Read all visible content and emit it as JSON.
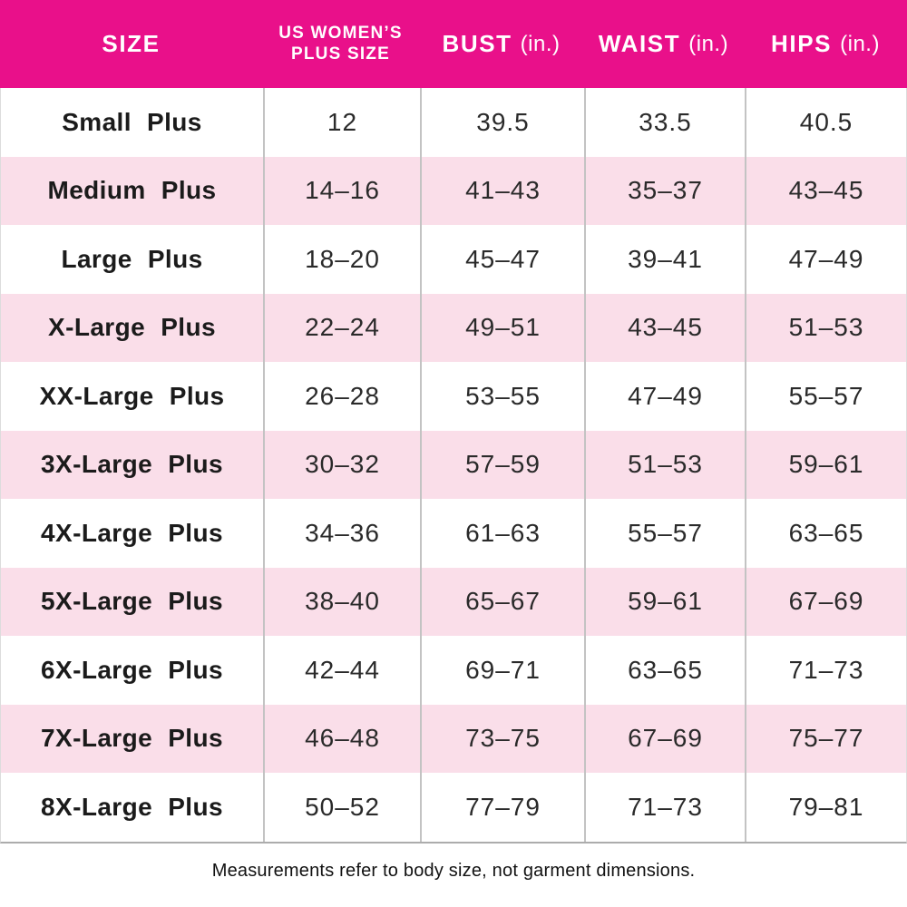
{
  "header": {
    "col_size": "SIZE",
    "col_us_line1": "US WOMEN’S",
    "col_us_line2": "PLUS SIZE",
    "col_bust": "BUST",
    "col_waist": "WAIST",
    "col_hips": "HIPS",
    "unit": "(in.)"
  },
  "rows": [
    {
      "size": "Small Plus",
      "us": "12",
      "bust": "39.5",
      "waist": "33.5",
      "hips": "40.5"
    },
    {
      "size": "Medium Plus",
      "us": "14–16",
      "bust": "41–43",
      "waist": "35–37",
      "hips": "43–45"
    },
    {
      "size": "Large Plus",
      "us": "18–20",
      "bust": "45–47",
      "waist": "39–41",
      "hips": "47–49"
    },
    {
      "size": "X-Large Plus",
      "us": "22–24",
      "bust": "49–51",
      "waist": "43–45",
      "hips": "51–53"
    },
    {
      "size": "XX-Large Plus",
      "us": "26–28",
      "bust": "53–55",
      "waist": "47–49",
      "hips": "55–57"
    },
    {
      "size": "3X-Large Plus",
      "us": "30–32",
      "bust": "57–59",
      "waist": "51–53",
      "hips": "59–61"
    },
    {
      "size": "4X-Large Plus",
      "us": "34–36",
      "bust": "61–63",
      "waist": "55–57",
      "hips": "63–65"
    },
    {
      "size": "5X-Large Plus",
      "us": "38–40",
      "bust": "65–67",
      "waist": "59–61",
      "hips": "67–69"
    },
    {
      "size": "6X-Large Plus",
      "us": "42–44",
      "bust": "69–71",
      "waist": "63–65",
      "hips": "71–73"
    },
    {
      "size": "7X-Large Plus",
      "us": "46–48",
      "bust": "73–75",
      "waist": "67–69",
      "hips": "75–77"
    },
    {
      "size": "8X-Large Plus",
      "us": "50–52",
      "bust": "77–79",
      "waist": "71–73",
      "hips": "79–81"
    }
  ],
  "footer_note": "Measurements refer to body size, not garment dimensions.",
  "colors": {
    "header_bg": "#E9108A",
    "header_text": "#FFFFFF",
    "row_bg": "#FFFFFF",
    "row_alt_bg": "#FADEE9",
    "divider": "#C3C3C3",
    "text": "#1B1B1B"
  }
}
